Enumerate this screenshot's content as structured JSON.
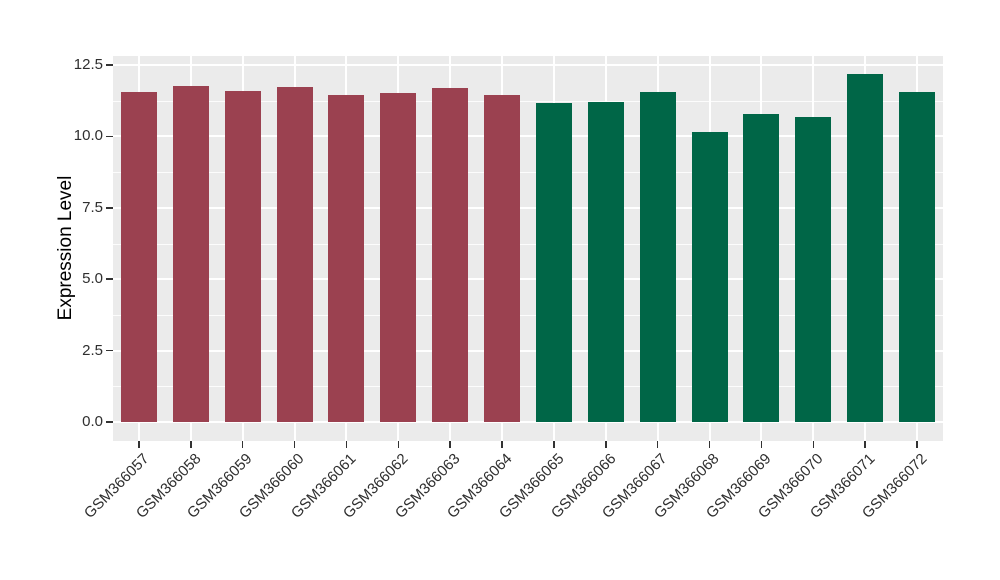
{
  "chart_data": {
    "type": "bar",
    "title": "",
    "xlabel": "",
    "ylabel": "Expression Level",
    "categories": [
      "GSM366057",
      "GSM366058",
      "GSM366059",
      "GSM366060",
      "GSM366061",
      "GSM366062",
      "GSM366063",
      "GSM366064",
      "GSM366065",
      "GSM366066",
      "GSM366067",
      "GSM366068",
      "GSM366069",
      "GSM366070",
      "GSM366071",
      "GSM366072"
    ],
    "values": [
      11.55,
      11.78,
      11.6,
      11.72,
      11.45,
      11.52,
      11.68,
      11.45,
      11.18,
      11.22,
      11.57,
      10.15,
      10.78,
      10.67,
      12.17,
      11.55
    ],
    "bar_colors": [
      "#9B4150",
      "#9B4150",
      "#9B4150",
      "#9B4150",
      "#9B4150",
      "#9B4150",
      "#9B4150",
      "#9B4150",
      "#006647",
      "#006647",
      "#006647",
      "#006647",
      "#006647",
      "#006647",
      "#006647",
      "#006647"
    ],
    "ylim": [
      -0.63,
      12.81
    ],
    "yticks": [
      0,
      2.5,
      5,
      7.5,
      10,
      12.5
    ],
    "ytick_labels": [
      "0.0",
      "2.5",
      "5.0",
      "7.5",
      "10.0",
      "12.5"
    ],
    "yminor_ticks": [
      1.25,
      3.75,
      6.25,
      8.75,
      11.25
    ],
    "grid": true,
    "legend": false
  },
  "style": {
    "panel_bg": "#EBEBEB",
    "grid_color": "#FFFFFF",
    "group1_color": "#9B4150",
    "group2_color": "#006647",
    "axis_text_color": "#2E2E2E",
    "axis_title_color": "#000000",
    "tick_color": "#333333",
    "background": "#FFFFFF"
  }
}
